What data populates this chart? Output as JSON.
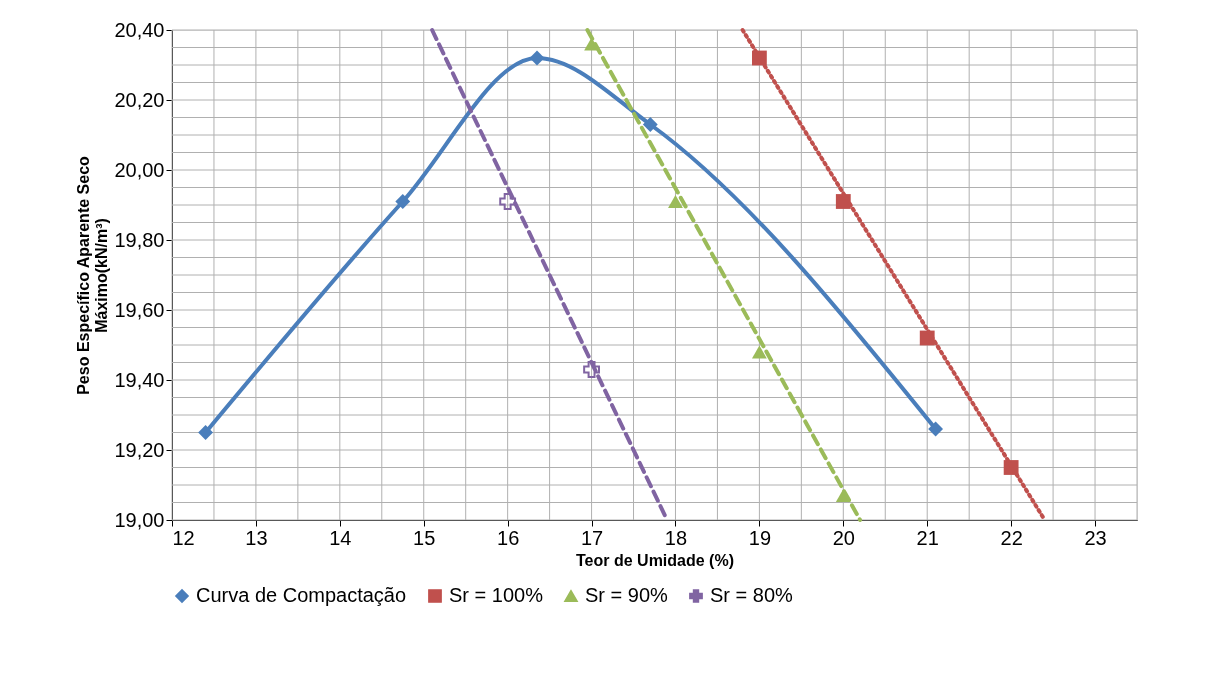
{
  "chart_data": {
    "type": "line",
    "xlabel": "Teor de Umidade (%)",
    "ylabel": "Peso Específico Aparente Seco\nMáximo(kN/m³)",
    "xlim": [
      12,
      23.5
    ],
    "xticks": [
      12,
      13,
      14,
      15,
      16,
      17,
      18,
      19,
      20,
      21,
      22,
      23
    ],
    "ylim": [
      19.0,
      20.4
    ],
    "yticks": [
      {
        "value": 19.0,
        "label": "19,00"
      },
      {
        "value": 19.2,
        "label": "19,20"
      },
      {
        "value": 19.4,
        "label": "19,40"
      },
      {
        "value": 19.6,
        "label": "19,60"
      },
      {
        "value": 19.8,
        "label": "19,80"
      },
      {
        "value": 20.0,
        "label": "20,00"
      },
      {
        "value": 20.2,
        "label": "20,20"
      },
      {
        "value": 20.4,
        "label": "20,40"
      }
    ],
    "grid": true,
    "legend": "bottom",
    "series": [
      {
        "name": "Curva de Compactação",
        "color": "#4a7ebb",
        "marker": "diamond",
        "line_style": "solid",
        "x": [
          12.4,
          14.75,
          16.35,
          17.7,
          21.1
        ],
        "values": [
          19.25,
          19.91,
          20.32,
          20.13,
          19.26
        ]
      },
      {
        "name": "Sr = 100%",
        "type": "scatter",
        "color": "#c0504d",
        "marker": "square",
        "line_style": "dotted",
        "x": [
          19,
          20,
          21,
          22
        ],
        "values": [
          20.32,
          19.91,
          19.52,
          19.15
        ]
      },
      {
        "name": "Sr = 90%",
        "type": "scatter",
        "color": "#9bbb59",
        "marker": "triangle",
        "line_style": "dashed",
        "x": [
          17,
          18,
          19,
          20
        ],
        "values": [
          20.36,
          19.91,
          19.48,
          19.07
        ]
      },
      {
        "name": "Sr = 80%",
        "type": "scatter",
        "color": "#8064a2",
        "marker": "cross",
        "line_style": "dashed",
        "x": [
          16,
          17
        ],
        "values": [
          19.91,
          19.43
        ]
      },
      {
        "type": "line",
        "color": "#c0504d",
        "marker": "none",
        "line_style": "dotted",
        "x": [
          18.8,
          22.4
        ],
        "values": [
          20.4,
          19.0
        ]
      },
      {
        "type": "line",
        "color": "#9bbb59",
        "marker": "none",
        "line_style": "dashed",
        "x": [
          16.95,
          20.2
        ],
        "values": [
          20.4,
          19.0
        ]
      },
      {
        "type": "line",
        "color": "#8064a2",
        "marker": "none",
        "line_style": "dashed",
        "x": [
          15.1,
          17.9
        ],
        "values": [
          20.4,
          19.0
        ]
      }
    ]
  }
}
